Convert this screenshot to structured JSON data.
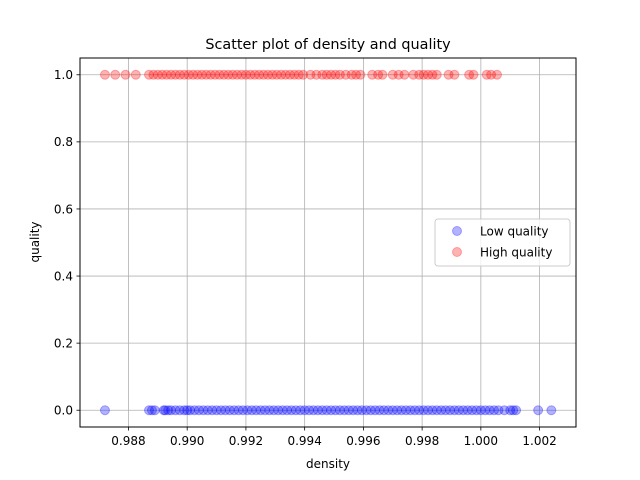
{
  "chart_data": {
    "type": "scatter",
    "title": "Scatter plot of density and quality",
    "xlabel": "density",
    "ylabel": "quality",
    "xlim": [
      0.98635,
      1.00324
    ],
    "ylim": [
      -0.05,
      1.05
    ],
    "xticks": [
      0.988,
      0.99,
      0.992,
      0.994,
      0.996,
      0.998,
      1.0,
      1.002
    ],
    "xtick_labels": [
      "0.988",
      "0.990",
      "0.992",
      "0.994",
      "0.996",
      "0.998",
      "1.000",
      "1.002"
    ],
    "yticks": [
      0.0,
      0.2,
      0.4,
      0.6,
      0.8,
      1.0
    ],
    "ytick_labels": [
      "0.0",
      "0.2",
      "0.4",
      "0.6",
      "0.8",
      "1.0"
    ],
    "grid": true,
    "legend_position": "center-right",
    "series": [
      {
        "name": "Low quality",
        "color": "#0000ff",
        "alpha": 0.3,
        "y_value": 0,
        "x": [
          0.9872,
          0.9887,
          0.9888,
          0.9889,
          0.9892,
          0.98925,
          0.98935,
          0.98945,
          0.9896,
          0.98975,
          0.9899,
          0.99,
          0.9901,
          0.99025,
          0.9904,
          0.99055,
          0.9907,
          0.99085,
          0.991,
          0.99115,
          0.9913,
          0.99145,
          0.9916,
          0.99175,
          0.9919,
          0.99205,
          0.9922,
          0.99235,
          0.9925,
          0.99265,
          0.9928,
          0.99295,
          0.9931,
          0.99325,
          0.9934,
          0.99355,
          0.9937,
          0.99385,
          0.994,
          0.99415,
          0.9943,
          0.99445,
          0.9946,
          0.99475,
          0.9949,
          0.99505,
          0.9952,
          0.99535,
          0.9955,
          0.99565,
          0.9958,
          0.99595,
          0.9961,
          0.99625,
          0.9964,
          0.99655,
          0.9967,
          0.99685,
          0.997,
          0.99715,
          0.9973,
          0.99745,
          0.9976,
          0.99775,
          0.9979,
          0.99805,
          0.9982,
          0.99835,
          0.9985,
          0.99865,
          0.9988,
          0.99895,
          0.9991,
          0.99925,
          0.9994,
          0.99955,
          0.9997,
          0.99985,
          1.0,
          1.00015,
          1.0003,
          1.00045,
          1.0006,
          1.0008,
          1.001,
          1.0011,
          1.0012,
          1.00195,
          1.0024
        ]
      },
      {
        "name": "High quality",
        "color": "#ff0000",
        "alpha": 0.3,
        "y_value": 1,
        "x": [
          0.9872,
          0.98755,
          0.9879,
          0.98825,
          0.9887,
          0.98885,
          0.989,
          0.98915,
          0.9893,
          0.98945,
          0.9896,
          0.98975,
          0.9899,
          0.99005,
          0.9902,
          0.99035,
          0.9905,
          0.99065,
          0.9908,
          0.99095,
          0.9911,
          0.99125,
          0.9914,
          0.99155,
          0.9917,
          0.99185,
          0.992,
          0.99215,
          0.9923,
          0.99245,
          0.9926,
          0.99275,
          0.9929,
          0.99305,
          0.9932,
          0.99335,
          0.9935,
          0.99365,
          0.9938,
          0.99395,
          0.9942,
          0.9944,
          0.9946,
          0.99475,
          0.9949,
          0.99505,
          0.9952,
          0.9954,
          0.9956,
          0.99575,
          0.9959,
          0.9963,
          0.9965,
          0.99665,
          0.997,
          0.9972,
          0.9974,
          0.9977,
          0.9979,
          0.99805,
          0.9982,
          0.99835,
          0.9985,
          0.9989,
          0.9991,
          0.9996,
          0.99975,
          1.0002,
          1.00035,
          1.00055
        ]
      }
    ]
  }
}
